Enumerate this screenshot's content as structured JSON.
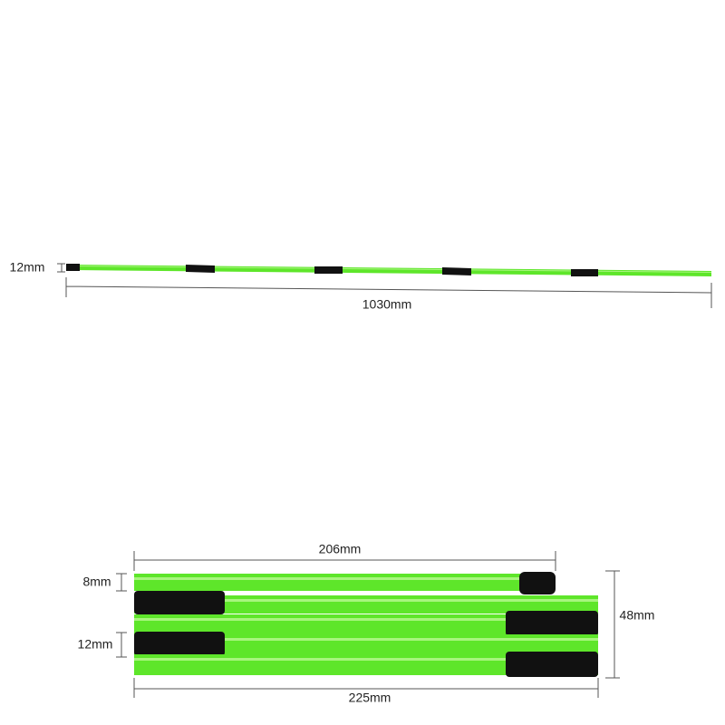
{
  "top": {
    "height_label": "12mm",
    "length_label": "1030mm"
  },
  "bottom": {
    "top_width_label": "206mm",
    "small_height_label": "8mm",
    "total_height_label": "48mm",
    "rod_height_label": "12mm",
    "total_width_label": "225mm"
  }
}
